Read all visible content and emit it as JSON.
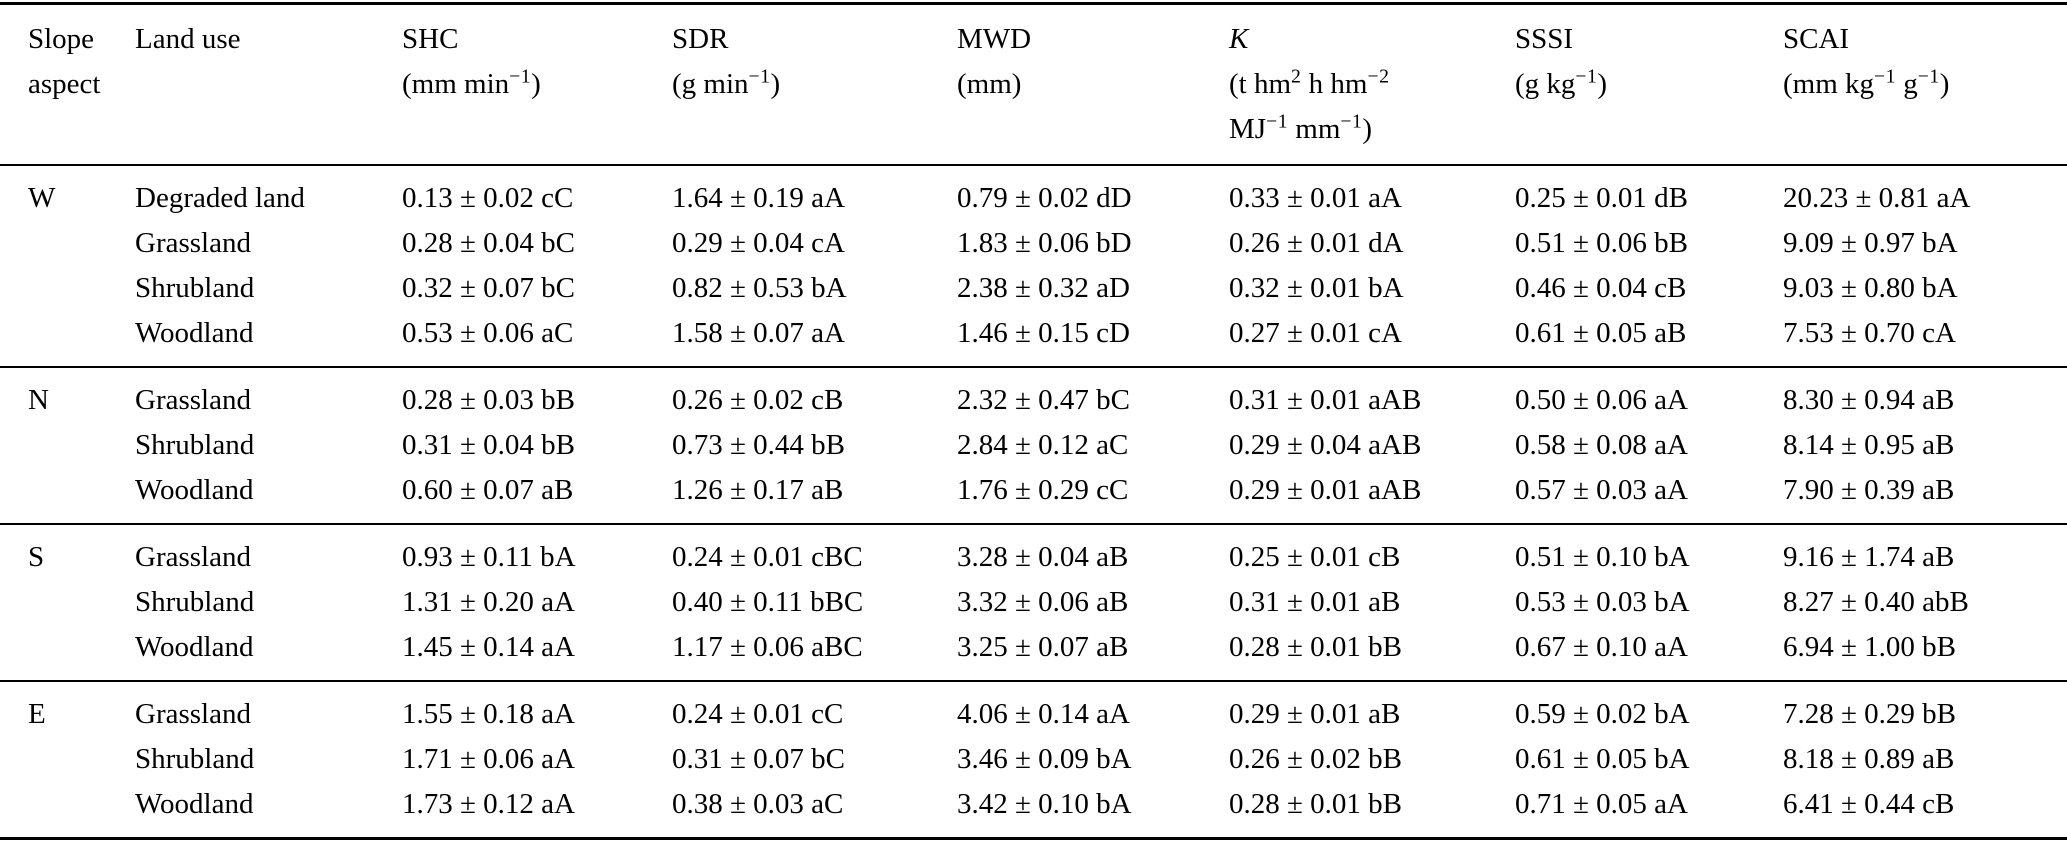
{
  "table": {
    "columns": [
      {
        "name_lines": [
          "Slope",
          "aspect"
        ],
        "unit_lines": []
      },
      {
        "name_lines": [
          "Land use"
        ],
        "unit_lines": []
      },
      {
        "name_lines": [
          "SHC"
        ],
        "unit_lines": [
          "(mm min^{−1})"
        ]
      },
      {
        "name_lines": [
          "SDR"
        ],
        "unit_lines": [
          "(g min^{−1})"
        ]
      },
      {
        "name_lines": [
          "MWD"
        ],
        "unit_lines": [
          "(mm)"
        ]
      },
      {
        "name_lines": [
          "K"
        ],
        "italic": true,
        "unit_lines": [
          "(t hm^{2} h hm^{−2}",
          "MJ^{−1} mm^{−1})"
        ]
      },
      {
        "name_lines": [
          "SSSI"
        ],
        "unit_lines": [
          "(g kg^{−1})"
        ]
      },
      {
        "name_lines": [
          "SCAI"
        ],
        "unit_lines": [
          "(mm kg^{−1} g^{−1})"
        ]
      }
    ],
    "value_column_keys": [
      "SHC",
      "SDR",
      "MWD",
      "K",
      "SSSI",
      "SCAI"
    ],
    "groups": [
      {
        "aspect": "W",
        "rows": [
          {
            "land_use": "Degraded land",
            "values": [
              "0.13 ± 0.02 cC",
              "1.64 ± 0.19 aA",
              "0.79 ± 0.02 dD",
              "0.33 ± 0.01 aA",
              "0.25 ± 0.01 dB",
              "20.23 ± 0.81 aA"
            ]
          },
          {
            "land_use": "Grassland",
            "values": [
              "0.28 ± 0.04 bC",
              "0.29 ± 0.04 cA",
              "1.83 ± 0.06 bD",
              "0.26 ± 0.01 dA",
              "0.51 ± 0.06 bB",
              "9.09 ± 0.97 bA"
            ]
          },
          {
            "land_use": "Shrubland",
            "values": [
              "0.32 ± 0.07 bC",
              "0.82 ± 0.53 bA",
              "2.38 ± 0.32 aD",
              "0.32 ± 0.01 bA",
              "0.46 ± 0.04 cB",
              "9.03 ± 0.80 bA"
            ]
          },
          {
            "land_use": "Woodland",
            "values": [
              "0.53 ± 0.06 aC",
              "1.58 ± 0.07 aA",
              "1.46 ± 0.15 cD",
              "0.27 ± 0.01 cA",
              "0.61 ± 0.05 aB",
              "7.53 ± 0.70 cA"
            ]
          }
        ]
      },
      {
        "aspect": "N",
        "rows": [
          {
            "land_use": "Grassland",
            "values": [
              "0.28 ± 0.03 bB",
              "0.26 ± 0.02 cB",
              "2.32 ± 0.47 bC",
              "0.31 ± 0.01 aAB",
              "0.50 ± 0.06 aA",
              "8.30 ± 0.94 aB"
            ]
          },
          {
            "land_use": "Shrubland",
            "values": [
              "0.31 ± 0.04 bB",
              "0.73 ± 0.44 bB",
              "2.84 ± 0.12 aC",
              "0.29 ± 0.04 aAB",
              "0.58 ± 0.08 aA",
              "8.14 ± 0.95 aB"
            ]
          },
          {
            "land_use": "Woodland",
            "values": [
              "0.60 ± 0.07 aB",
              "1.26 ± 0.17 aB",
              "1.76 ± 0.29 cC",
              "0.29 ± 0.01 aAB",
              "0.57 ± 0.03 aA",
              "7.90 ± 0.39 aB"
            ]
          }
        ]
      },
      {
        "aspect": "S",
        "rows": [
          {
            "land_use": "Grassland",
            "values": [
              "0.93 ± 0.11 bA",
              "0.24 ± 0.01 cBC",
              "3.28 ± 0.04 aB",
              "0.25 ± 0.01 cB",
              "0.51 ± 0.10 bA",
              "9.16 ± 1.74 aB"
            ]
          },
          {
            "land_use": "Shrubland",
            "values": [
              "1.31 ± 0.20 aA",
              "0.40 ± 0.11 bBC",
              "3.32 ± 0.06 aB",
              "0.31 ± 0.01 aB",
              "0.53 ± 0.03 bA",
              "8.27 ± 0.40 abB"
            ]
          },
          {
            "land_use": "Woodland",
            "values": [
              "1.45 ± 0.14 aA",
              "1.17 ± 0.06 aBC",
              "3.25 ± 0.07 aB",
              "0.28 ± 0.01 bB",
              "0.67 ± 0.10 aA",
              "6.94 ± 1.00 bB"
            ]
          }
        ]
      },
      {
        "aspect": "E",
        "rows": [
          {
            "land_use": "Grassland",
            "values": [
              "1.55 ± 0.18 aA",
              "0.24 ± 0.01 cC",
              "4.06 ± 0.14 aA",
              "0.29 ± 0.01 aB",
              "0.59 ± 0.02 bA",
              "7.28 ± 0.29 bB"
            ]
          },
          {
            "land_use": "Shrubland",
            "values": [
              "1.71 ± 0.06 aA",
              "0.31 ± 0.07 bC",
              "3.46 ± 0.09 bA",
              "0.26 ± 0.02 bB",
              "0.61 ± 0.05 bA",
              "8.18 ± 0.89 aB"
            ]
          },
          {
            "land_use": "Woodland",
            "values": [
              "1.73 ± 0.12 aA",
              "0.38 ± 0.03 aC",
              "3.42 ± 0.10 bA",
              "0.28 ± 0.01 bB",
              "0.71 ± 0.05 aA",
              "6.41 ± 0.44 cB"
            ]
          }
        ]
      }
    ]
  },
  "colors": {
    "text": "#000000",
    "background": "#ffffff",
    "rule": "#000000"
  }
}
